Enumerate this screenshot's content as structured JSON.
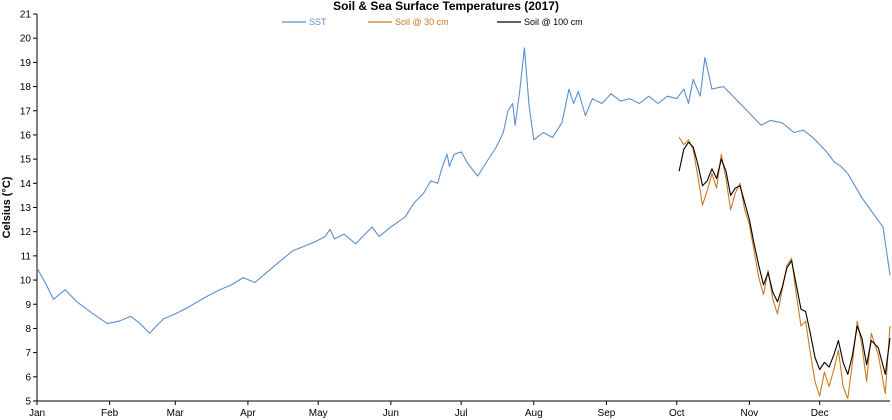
{
  "chart_data": {
    "type": "line",
    "title": "Soil & Sea Surface Temperatures (2017)",
    "xlabel": "",
    "ylabel": "Celsius (°C)",
    "ylim": [
      5,
      21
    ],
    "yticks": [
      5,
      6,
      7,
      8,
      9,
      10,
      11,
      12,
      13,
      14,
      15,
      16,
      17,
      18,
      19,
      20,
      21
    ],
    "months": [
      "Jan",
      "Feb",
      "Mar",
      "Apr",
      "May",
      "Jun",
      "Jul",
      "Aug",
      "Sep",
      "Oct",
      "Nov",
      "Dec"
    ],
    "xlim": [
      "2017-01-01",
      "2017-12-31"
    ],
    "grid": false,
    "legend_position": "top-center",
    "series": [
      {
        "name": "SST",
        "color": "#5b8fcc",
        "points": [
          [
            "2017-01-01",
            10.5
          ],
          [
            "2017-01-05",
            9.8
          ],
          [
            "2017-01-08",
            9.2
          ],
          [
            "2017-01-13",
            9.6
          ],
          [
            "2017-01-18",
            9.1
          ],
          [
            "2017-01-25",
            8.6
          ],
          [
            "2017-01-31",
            8.2
          ],
          [
            "2017-02-05",
            8.3
          ],
          [
            "2017-02-10",
            8.5
          ],
          [
            "2017-02-14",
            8.2
          ],
          [
            "2017-02-18",
            7.8
          ],
          [
            "2017-02-24",
            8.4
          ],
          [
            "2017-03-01",
            8.6
          ],
          [
            "2017-03-07",
            8.9
          ],
          [
            "2017-03-14",
            9.3
          ],
          [
            "2017-03-20",
            9.6
          ],
          [
            "2017-03-25",
            9.8
          ],
          [
            "2017-03-30",
            10.1
          ],
          [
            "2017-04-04",
            9.9
          ],
          [
            "2017-04-10",
            10.4
          ],
          [
            "2017-04-15",
            10.8
          ],
          [
            "2017-04-20",
            11.2
          ],
          [
            "2017-04-25",
            11.4
          ],
          [
            "2017-04-30",
            11.6
          ],
          [
            "2017-05-04",
            11.8
          ],
          [
            "2017-05-06",
            12.1
          ],
          [
            "2017-05-08",
            11.7
          ],
          [
            "2017-05-12",
            11.9
          ],
          [
            "2017-05-17",
            11.5
          ],
          [
            "2017-05-21",
            11.9
          ],
          [
            "2017-05-24",
            12.2
          ],
          [
            "2017-05-27",
            11.8
          ],
          [
            "2017-06-01",
            12.2
          ],
          [
            "2017-06-07",
            12.6
          ],
          [
            "2017-06-11",
            13.2
          ],
          [
            "2017-06-15",
            13.6
          ],
          [
            "2017-06-18",
            14.1
          ],
          [
            "2017-06-21",
            14.0
          ],
          [
            "2017-06-23",
            14.7
          ],
          [
            "2017-06-25",
            15.2
          ],
          [
            "2017-06-26",
            14.7
          ],
          [
            "2017-06-28",
            15.2
          ],
          [
            "2017-07-01",
            15.3
          ],
          [
            "2017-07-04",
            14.8
          ],
          [
            "2017-07-08",
            14.3
          ],
          [
            "2017-07-12",
            14.9
          ],
          [
            "2017-07-16",
            15.5
          ],
          [
            "2017-07-19",
            16.1
          ],
          [
            "2017-07-21",
            17.0
          ],
          [
            "2017-07-23",
            17.3
          ],
          [
            "2017-07-24",
            16.4
          ],
          [
            "2017-07-26",
            17.8
          ],
          [
            "2017-07-28",
            19.6
          ],
          [
            "2017-07-30",
            17.2
          ],
          [
            "2017-08-01",
            15.8
          ],
          [
            "2017-08-05",
            16.1
          ],
          [
            "2017-08-09",
            15.9
          ],
          [
            "2017-08-13",
            16.5
          ],
          [
            "2017-08-16",
            17.9
          ],
          [
            "2017-08-18",
            17.3
          ],
          [
            "2017-08-20",
            17.8
          ],
          [
            "2017-08-23",
            16.8
          ],
          [
            "2017-08-26",
            17.5
          ],
          [
            "2017-08-30",
            17.3
          ],
          [
            "2017-09-03",
            17.7
          ],
          [
            "2017-09-07",
            17.4
          ],
          [
            "2017-09-11",
            17.5
          ],
          [
            "2017-09-15",
            17.3
          ],
          [
            "2017-09-19",
            17.6
          ],
          [
            "2017-09-23",
            17.3
          ],
          [
            "2017-09-27",
            17.6
          ],
          [
            "2017-10-01",
            17.5
          ],
          [
            "2017-10-04",
            17.9
          ],
          [
            "2017-10-06",
            17.3
          ],
          [
            "2017-10-08",
            18.3
          ],
          [
            "2017-10-11",
            17.6
          ],
          [
            "2017-10-13",
            19.2
          ],
          [
            "2017-10-16",
            17.9
          ],
          [
            "2017-10-21",
            18.0
          ],
          [
            "2017-10-25",
            17.6
          ],
          [
            "2017-10-29",
            17.2
          ],
          [
            "2017-11-02",
            16.8
          ],
          [
            "2017-11-06",
            16.4
          ],
          [
            "2017-11-10",
            16.6
          ],
          [
            "2017-11-15",
            16.5
          ],
          [
            "2017-11-20",
            16.1
          ],
          [
            "2017-11-24",
            16.2
          ],
          [
            "2017-11-28",
            15.9
          ],
          [
            "2017-12-01",
            15.6
          ],
          [
            "2017-12-04",
            15.3
          ],
          [
            "2017-12-07",
            14.9
          ],
          [
            "2017-12-10",
            14.7
          ],
          [
            "2017-12-13",
            14.4
          ],
          [
            "2017-12-16",
            13.9
          ],
          [
            "2017-12-19",
            13.4
          ],
          [
            "2017-12-22",
            13.0
          ],
          [
            "2017-12-25",
            12.6
          ],
          [
            "2017-12-28",
            12.2
          ],
          [
            "2017-12-31",
            10.2
          ]
        ]
      },
      {
        "name": "Soil @ 30 cm",
        "color": "#cc7a1e",
        "points": [
          [
            "2017-10-02",
            15.9
          ],
          [
            "2017-10-04",
            15.6
          ],
          [
            "2017-10-06",
            15.8
          ],
          [
            "2017-10-08",
            15.4
          ],
          [
            "2017-10-10",
            14.3
          ],
          [
            "2017-10-12",
            13.1
          ],
          [
            "2017-10-14",
            13.7
          ],
          [
            "2017-10-16",
            14.4
          ],
          [
            "2017-10-18",
            13.8
          ],
          [
            "2017-10-20",
            15.2
          ],
          [
            "2017-10-22",
            14.2
          ],
          [
            "2017-10-24",
            12.9
          ],
          [
            "2017-10-26",
            13.6
          ],
          [
            "2017-10-28",
            14.0
          ],
          [
            "2017-10-30",
            12.9
          ],
          [
            "2017-11-01",
            12.3
          ],
          [
            "2017-11-03",
            11.2
          ],
          [
            "2017-11-05",
            10.1
          ],
          [
            "2017-11-07",
            9.4
          ],
          [
            "2017-11-09",
            10.4
          ],
          [
            "2017-11-11",
            9.2
          ],
          [
            "2017-11-13",
            8.6
          ],
          [
            "2017-11-15",
            9.6
          ],
          [
            "2017-11-17",
            10.6
          ],
          [
            "2017-11-19",
            10.9
          ],
          [
            "2017-11-21",
            9.4
          ],
          [
            "2017-11-23",
            8.1
          ],
          [
            "2017-11-25",
            8.3
          ],
          [
            "2017-11-27",
            7.0
          ],
          [
            "2017-11-29",
            5.8
          ],
          [
            "2017-12-01",
            5.2
          ],
          [
            "2017-12-03",
            6.2
          ],
          [
            "2017-12-05",
            5.6
          ],
          [
            "2017-12-07",
            6.3
          ],
          [
            "2017-12-09",
            7.1
          ],
          [
            "2017-12-11",
            5.6
          ],
          [
            "2017-12-13",
            5.1
          ],
          [
            "2017-12-15",
            6.6
          ],
          [
            "2017-12-17",
            8.3
          ],
          [
            "2017-12-19",
            7.3
          ],
          [
            "2017-12-21",
            5.8
          ],
          [
            "2017-12-23",
            7.8
          ],
          [
            "2017-12-26",
            6.9
          ],
          [
            "2017-12-29",
            5.3
          ],
          [
            "2017-12-31",
            8.1
          ]
        ]
      },
      {
        "name": "Soil @ 100 cm",
        "color": "#000000",
        "points": [
          [
            "2017-10-02",
            14.5
          ],
          [
            "2017-10-04",
            15.4
          ],
          [
            "2017-10-06",
            15.7
          ],
          [
            "2017-10-08",
            15.5
          ],
          [
            "2017-10-10",
            14.8
          ],
          [
            "2017-10-12",
            13.9
          ],
          [
            "2017-10-14",
            14.1
          ],
          [
            "2017-10-16",
            14.6
          ],
          [
            "2017-10-18",
            14.2
          ],
          [
            "2017-10-20",
            15.0
          ],
          [
            "2017-10-22",
            14.5
          ],
          [
            "2017-10-24",
            13.5
          ],
          [
            "2017-10-26",
            13.8
          ],
          [
            "2017-10-28",
            13.9
          ],
          [
            "2017-10-30",
            13.2
          ],
          [
            "2017-11-01",
            12.5
          ],
          [
            "2017-11-03",
            11.5
          ],
          [
            "2017-11-05",
            10.6
          ],
          [
            "2017-11-07",
            9.8
          ],
          [
            "2017-11-09",
            10.3
          ],
          [
            "2017-11-11",
            9.5
          ],
          [
            "2017-11-13",
            9.1
          ],
          [
            "2017-11-15",
            9.7
          ],
          [
            "2017-11-17",
            10.5
          ],
          [
            "2017-11-19",
            10.8
          ],
          [
            "2017-11-21",
            9.8
          ],
          [
            "2017-11-23",
            8.8
          ],
          [
            "2017-11-25",
            8.7
          ],
          [
            "2017-11-27",
            7.8
          ],
          [
            "2017-11-29",
            6.8
          ],
          [
            "2017-12-01",
            6.3
          ],
          [
            "2017-12-03",
            6.6
          ],
          [
            "2017-12-05",
            6.4
          ],
          [
            "2017-12-07",
            6.9
          ],
          [
            "2017-12-09",
            7.5
          ],
          [
            "2017-12-11",
            6.6
          ],
          [
            "2017-12-13",
            6.1
          ],
          [
            "2017-12-15",
            6.9
          ],
          [
            "2017-12-17",
            8.1
          ],
          [
            "2017-12-19",
            7.6
          ],
          [
            "2017-12-21",
            6.5
          ],
          [
            "2017-12-23",
            7.5
          ],
          [
            "2017-12-26",
            7.2
          ],
          [
            "2017-12-29",
            6.1
          ],
          [
            "2017-12-31",
            7.6
          ]
        ]
      }
    ]
  }
}
